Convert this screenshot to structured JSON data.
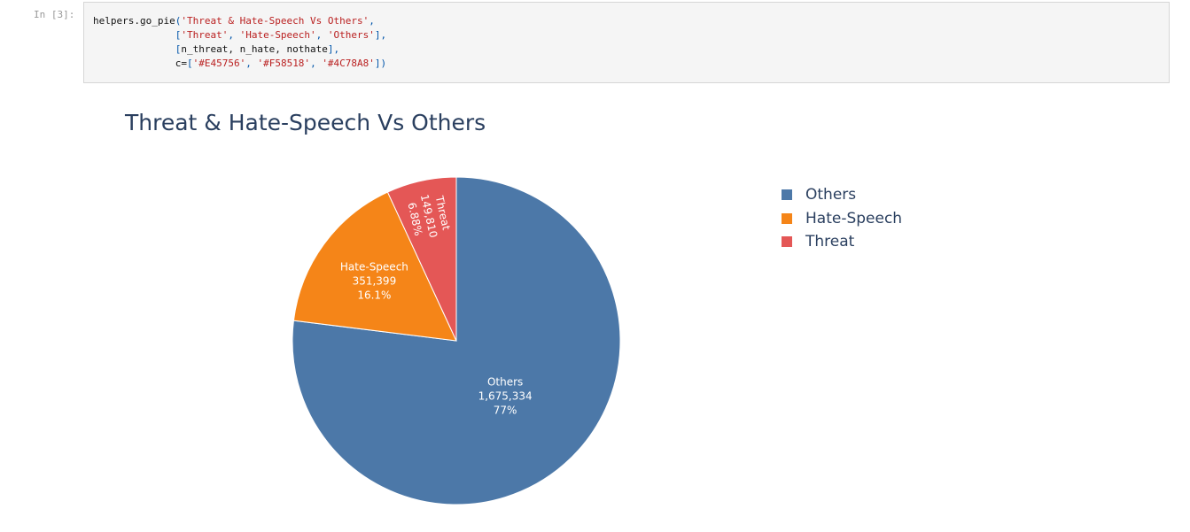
{
  "cell": {
    "prompt": "In [3]:",
    "code_lines": [
      [
        {
          "t": "helpers.go_pie",
          "k": "plain"
        },
        {
          "t": "(",
          "k": "punc"
        },
        {
          "t": "'Threat & Hate-Speech Vs Others'",
          "k": "str"
        },
        {
          "t": ",",
          "k": "punc"
        }
      ],
      [
        {
          "t": "              ",
          "k": "plain"
        },
        {
          "t": "[",
          "k": "punc"
        },
        {
          "t": "'Threat'",
          "k": "str"
        },
        {
          "t": ", ",
          "k": "punc"
        },
        {
          "t": "'Hate-Speech'",
          "k": "str"
        },
        {
          "t": ", ",
          "k": "punc"
        },
        {
          "t": "'Others'",
          "k": "str"
        },
        {
          "t": "],",
          "k": "punc"
        }
      ],
      [
        {
          "t": "              ",
          "k": "plain"
        },
        {
          "t": "[",
          "k": "punc"
        },
        {
          "t": "n_threat, n_hate, nothate",
          "k": "plain"
        },
        {
          "t": "],",
          "k": "punc"
        }
      ],
      [
        {
          "t": "              ",
          "k": "plain"
        },
        {
          "t": "c=",
          "k": "plain"
        },
        {
          "t": "[",
          "k": "punc"
        },
        {
          "t": "'#E45756'",
          "k": "str"
        },
        {
          "t": ", ",
          "k": "punc"
        },
        {
          "t": "'#F58518'",
          "k": "str"
        },
        {
          "t": ", ",
          "k": "punc"
        },
        {
          "t": "'#4C78A8'",
          "k": "str"
        },
        {
          "t": "])",
          "k": "punc"
        }
      ]
    ]
  },
  "chart_data": {
    "type": "pie",
    "title": "Threat & Hate-Speech Vs Others",
    "slices": [
      {
        "label": "Others",
        "value": 1675334,
        "value_text": "1,675,334",
        "percent_text": "77%",
        "color": "#4C78A8"
      },
      {
        "label": "Hate-Speech",
        "value": 351399,
        "value_text": "351,399",
        "percent_text": "16.1%",
        "color": "#F58518"
      },
      {
        "label": "Threat",
        "value": 149810,
        "value_text": "149,810",
        "percent_text": "6.88%",
        "color": "#E45756"
      }
    ],
    "legend_position": "right",
    "direction": "clockwise"
  }
}
